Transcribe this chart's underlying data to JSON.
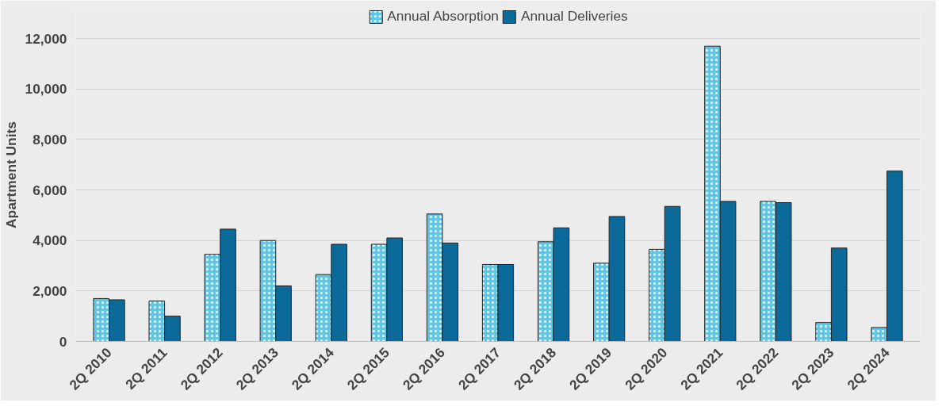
{
  "chart_data": {
    "type": "bar",
    "ylabel": "Apartment Units",
    "categories": [
      "2Q 2010",
      "2Q 2011",
      "2Q 2012",
      "2Q 2013",
      "2Q 2014",
      "2Q 2015",
      "2Q 2016",
      "2Q 2017",
      "2Q 2018",
      "2Q 2019",
      "2Q 2020",
      "2Q 2021",
      "2Q 2022",
      "2Q 2023",
      "2Q 2024"
    ],
    "series": [
      {
        "name": "Annual Absorption",
        "color": "#5bc8e8",
        "values": [
          1700,
          1600,
          3450,
          4000,
          2650,
          3850,
          5050,
          3050,
          3950,
          3100,
          3650,
          11700,
          5550,
          750,
          550
        ]
      },
      {
        "name": "Annual Deliveries",
        "color": "#0b6a9a",
        "values": [
          1650,
          1000,
          4450,
          2200,
          3850,
          4100,
          3900,
          3050,
          4500,
          4950,
          5350,
          5550,
          5500,
          3700,
          6750
        ]
      }
    ],
    "ylim": [
      0,
      13200
    ],
    "yticks": [
      {
        "value": 0,
        "label": "0"
      },
      {
        "value": 2000,
        "label": "2,000"
      },
      {
        "value": 4000,
        "label": "4,000"
      },
      {
        "value": 6000,
        "label": "6,000"
      },
      {
        "value": 8000,
        "label": "8,000"
      },
      {
        "value": 10000,
        "label": "10,000"
      },
      {
        "value": 12000,
        "label": "12,000"
      }
    ],
    "grid": "y",
    "legend": "top"
  }
}
